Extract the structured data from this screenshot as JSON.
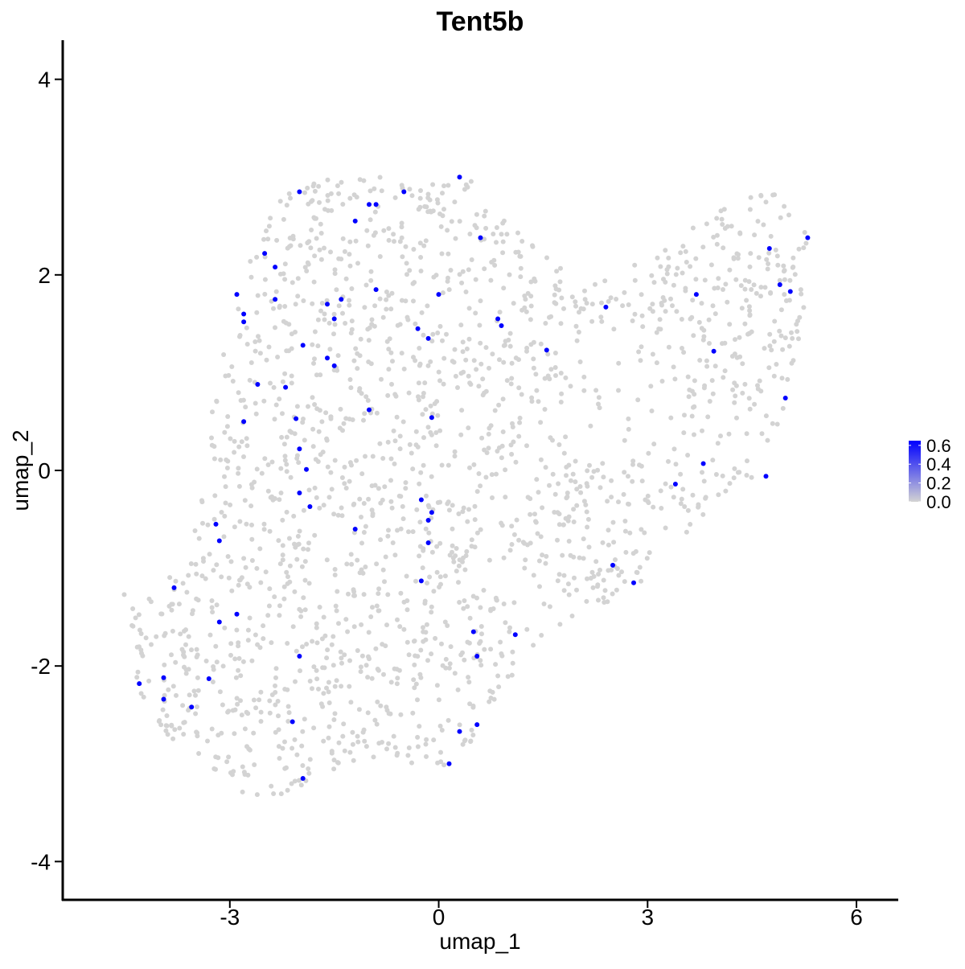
{
  "chart_data": {
    "type": "scatter",
    "title": "Tent5b",
    "xlabel": "umap_1",
    "ylabel": "umap_2",
    "xlim": [
      -5.4,
      6.6
    ],
    "ylim": [
      -4.4,
      4.4
    ],
    "x_ticks": [
      {
        "value": -3,
        "label": "-3"
      },
      {
        "value": 0,
        "label": "0"
      },
      {
        "value": 3,
        "label": "3"
      },
      {
        "value": 6,
        "label": "6"
      }
    ],
    "y_ticks": [
      {
        "value": 4,
        "label": "4"
      },
      {
        "value": 2,
        "label": "2"
      },
      {
        "value": 0,
        "label": "0"
      },
      {
        "value": -2,
        "label": "-2"
      },
      {
        "value": -4,
        "label": "-4"
      }
    ],
    "grid": false,
    "legend": {
      "position": "right",
      "type": "colorbar",
      "range": [
        0,
        0.65
      ],
      "ticks": [
        "0.0",
        "0.2",
        "0.4",
        "0.6"
      ],
      "low_color": "#d3d3d3",
      "high_color": "#0000ff"
    },
    "colors": {
      "low": "#d3d3d3",
      "high": "#0000ff"
    },
    "background_cell_count": 1900,
    "expressing_cells": [
      [
        0.3,
        3.0
      ],
      [
        -2.0,
        2.85
      ],
      [
        -0.5,
        2.85
      ],
      [
        -1.0,
        2.72
      ],
      [
        -0.9,
        2.72
      ],
      [
        -1.2,
        2.55
      ],
      [
        0.6,
        2.38
      ],
      [
        -2.5,
        2.22
      ],
      [
        -2.35,
        2.08
      ],
      [
        -2.9,
        1.8
      ],
      [
        -2.35,
        1.75
      ],
      [
        -1.6,
        1.7
      ],
      [
        -1.4,
        1.75
      ],
      [
        -0.9,
        1.85
      ],
      [
        0.0,
        1.8
      ],
      [
        -2.8,
        1.6
      ],
      [
        -2.8,
        1.52
      ],
      [
        -1.5,
        1.55
      ],
      [
        -1.95,
        1.28
      ],
      [
        -1.6,
        1.15
      ],
      [
        -1.5,
        1.07
      ],
      [
        -0.3,
        1.45
      ],
      [
        -0.15,
        1.35
      ],
      [
        0.85,
        1.55
      ],
      [
        0.9,
        1.48
      ],
      [
        1.55,
        1.23
      ],
      [
        2.4,
        1.67
      ],
      [
        3.7,
        1.8
      ],
      [
        3.95,
        1.22
      ],
      [
        4.75,
        2.27
      ],
      [
        5.3,
        2.38
      ],
      [
        4.9,
        1.9
      ],
      [
        5.05,
        1.83
      ],
      [
        4.98,
        0.74
      ],
      [
        -2.6,
        0.88
      ],
      [
        -2.2,
        0.85
      ],
      [
        -2.05,
        0.53
      ],
      [
        -1.0,
        0.62
      ],
      [
        -0.1,
        0.54
      ],
      [
        -2.8,
        0.5
      ],
      [
        -2.0,
        0.22
      ],
      [
        -1.9,
        0.01
      ],
      [
        -2.0,
        -0.23
      ],
      [
        -1.85,
        -0.37
      ],
      [
        -0.25,
        -0.3
      ],
      [
        -0.1,
        -0.43
      ],
      [
        -0.15,
        -0.51
      ],
      [
        -1.2,
        -0.6
      ],
      [
        -0.15,
        -0.74
      ],
      [
        -3.2,
        -0.55
      ],
      [
        -3.15,
        -0.72
      ],
      [
        3.4,
        -0.14
      ],
      [
        3.8,
        0.07
      ],
      [
        4.7,
        -0.06
      ],
      [
        2.5,
        -0.97
      ],
      [
        2.8,
        -1.15
      ],
      [
        -0.25,
        -1.13
      ],
      [
        -3.8,
        -1.2
      ],
      [
        -2.9,
        -1.47
      ],
      [
        -3.15,
        -1.55
      ],
      [
        0.5,
        -1.65
      ],
      [
        1.1,
        -1.68
      ],
      [
        -2.0,
        -1.9
      ],
      [
        0.55,
        -1.9
      ],
      [
        -3.3,
        -2.13
      ],
      [
        -4.3,
        -2.18
      ],
      [
        -3.95,
        -2.12
      ],
      [
        -3.95,
        -2.34
      ],
      [
        -3.55,
        -2.42
      ],
      [
        -2.1,
        -2.57
      ],
      [
        0.3,
        -2.67
      ],
      [
        0.55,
        -2.6
      ],
      [
        0.15,
        -3.0
      ],
      [
        -1.95,
        -3.15
      ]
    ]
  }
}
